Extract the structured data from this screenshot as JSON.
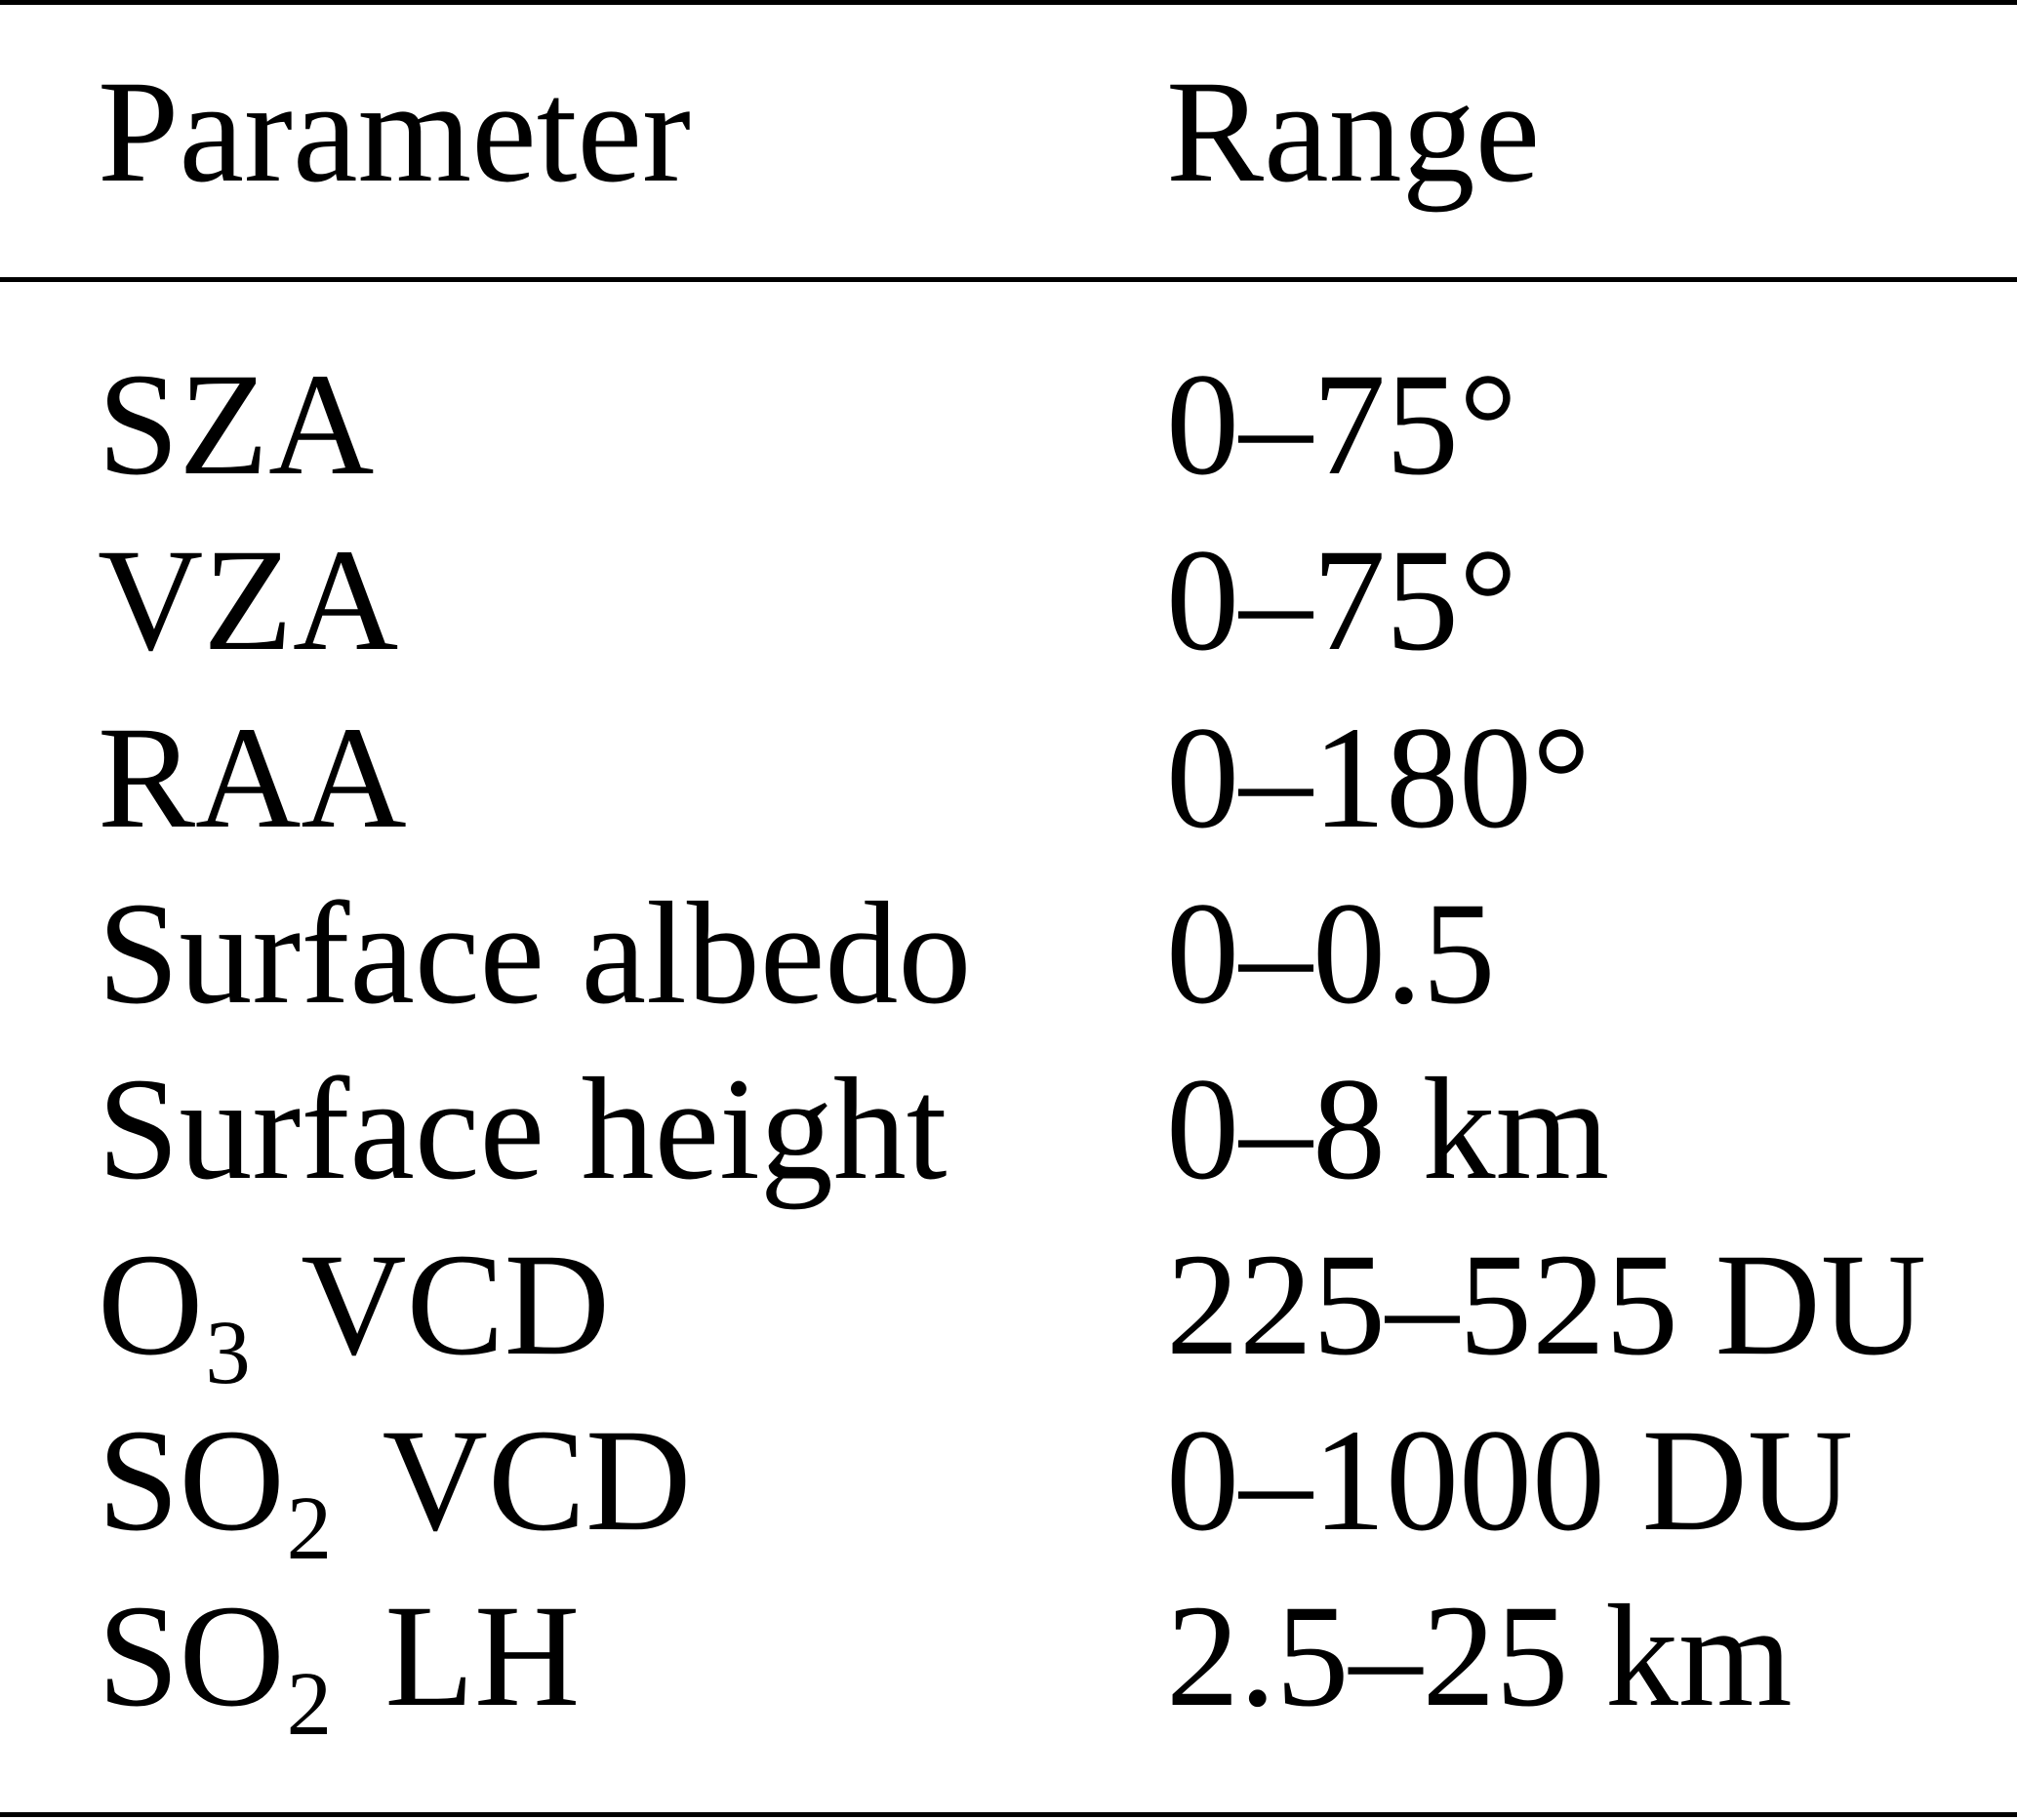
{
  "table": {
    "headers": {
      "parameter": "Parameter",
      "range": "Range"
    },
    "rows": [
      {
        "parameter": {
          "base": "SZA",
          "sub": "",
          "rest": ""
        },
        "range": "0–75°"
      },
      {
        "parameter": {
          "base": "VZA",
          "sub": "",
          "rest": ""
        },
        "range": "0–75°"
      },
      {
        "parameter": {
          "base": "RAA",
          "sub": "",
          "rest": ""
        },
        "range": "0–180°"
      },
      {
        "parameter": {
          "base": "Surface albedo",
          "sub": "",
          "rest": ""
        },
        "range": "0–0.5"
      },
      {
        "parameter": {
          "base": "Surface height",
          "sub": "",
          "rest": ""
        },
        "range": "0–8 km"
      },
      {
        "parameter": {
          "base": "O",
          "sub": "3",
          "rest": "VCD"
        },
        "range": "225–525 DU"
      },
      {
        "parameter": {
          "base": "SO",
          "sub": "2",
          "rest": "VCD"
        },
        "range": "0–1000 DU"
      },
      {
        "parameter": {
          "base": "SO",
          "sub": "2",
          "rest": "LH"
        },
        "range": "2.5–25 km"
      }
    ]
  }
}
